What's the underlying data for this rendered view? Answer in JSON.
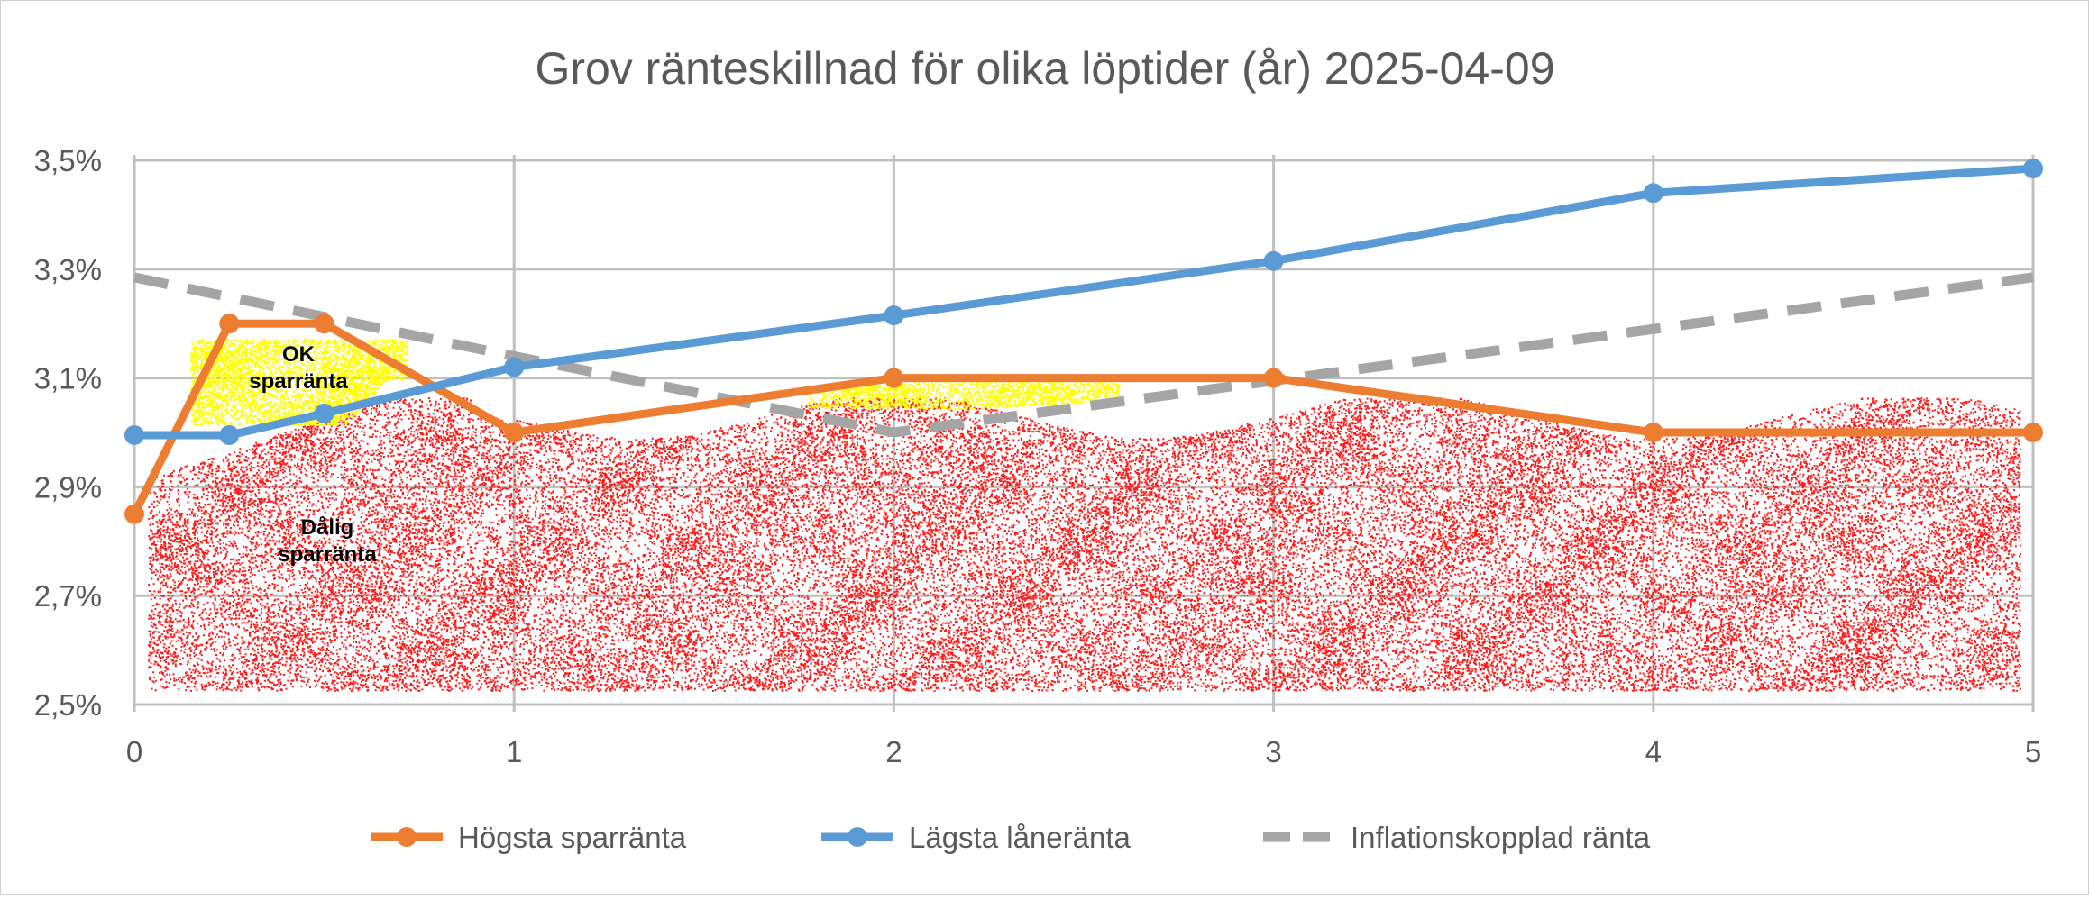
{
  "chart_data": {
    "type": "line",
    "title": "Grov ränteskillnad för olika löptider (år) 2025-04-09",
    "xlabel": "",
    "ylabel": "",
    "xlim": [
      0,
      5
    ],
    "ylim": [
      2.5,
      3.5
    ],
    "x_ticks": [
      "0",
      "1",
      "2",
      "3",
      "4",
      "5"
    ],
    "y_ticks": [
      "2,5%",
      "2,7%",
      "2,9%",
      "3,1%",
      "3,3%",
      "3,5%"
    ],
    "grid": true,
    "legend_position": "bottom",
    "series": [
      {
        "name": "Högsta sparränta",
        "color": "#ED7D31",
        "dashed": false,
        "markers": true,
        "x": [
          0,
          0.25,
          0.5,
          1,
          2,
          3,
          4,
          5
        ],
        "values": [
          2.85,
          3.2,
          3.2,
          3.0,
          3.1,
          3.1,
          3.0,
          3.0
        ]
      },
      {
        "name": "Lägsta låneränta",
        "color": "#5B9BD5",
        "dashed": false,
        "markers": true,
        "x": [
          0,
          0.25,
          0.5,
          1,
          2,
          3,
          4,
          5
        ],
        "values": [
          2.995,
          2.995,
          3.035,
          3.12,
          3.215,
          3.315,
          3.44,
          3.485
        ]
      },
      {
        "name": "Inflationskopplad ränta",
        "color": "#A5A5A5",
        "dashed": true,
        "markers": false,
        "x": [
          0,
          1,
          2,
          3,
          4,
          5
        ],
        "values": [
          3.285,
          3.14,
          3.0,
          3.095,
          3.19,
          3.285
        ]
      }
    ],
    "annotations": [
      {
        "text": [
          "OK",
          "sparränta"
        ],
        "color": "#FFFF00"
      },
      {
        "text": [
          "Dålig",
          "sparränta"
        ],
        "color": "#FF0000"
      }
    ]
  }
}
